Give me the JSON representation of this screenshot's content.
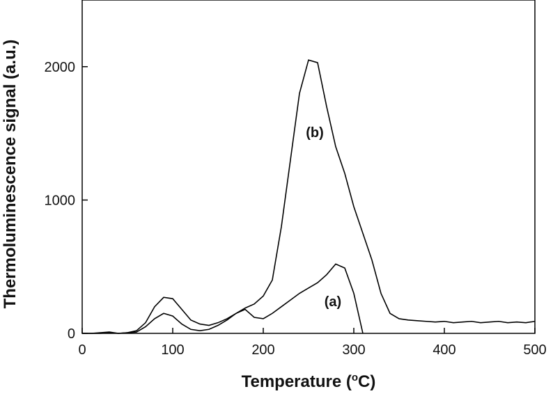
{
  "chart_data": {
    "type": "line",
    "xlabel": {
      "text": "Temperature (",
      "sup": "o",
      "after": "C)"
    },
    "ylabel": "Thermoluminescence signal (a.u.)",
    "annotations": [
      "(b)",
      "(a)"
    ],
    "x": [
      0,
      10,
      20,
      30,
      40,
      50,
      60,
      70,
      80,
      90,
      100,
      110,
      120,
      130,
      140,
      150,
      160,
      170,
      180,
      190,
      200,
      210,
      220,
      230,
      240,
      250,
      260,
      270,
      280,
      290,
      300,
      310,
      320,
      330,
      340,
      350,
      360,
      370,
      380,
      390,
      400,
      410,
      420,
      430,
      440,
      450,
      460,
      470,
      480,
      490,
      500
    ],
    "series": [
      {
        "name": "(b)",
        "color": "#000000",
        "values": [
          0,
          0,
          5,
          10,
          0,
          5,
          20,
          80,
          200,
          270,
          260,
          180,
          100,
          70,
          60,
          80,
          110,
          150,
          190,
          220,
          280,
          400,
          800,
          1300,
          1800,
          2050,
          2030,
          1700,
          1400,
          1200,
          950,
          750,
          550,
          300,
          150,
          110,
          100,
          95,
          90,
          85,
          90,
          80,
          85,
          90,
          80,
          85,
          90,
          80,
          85,
          80,
          90
        ]
      },
      {
        "name": "(a)",
        "color": "#000000",
        "values": [
          0,
          0,
          0,
          5,
          0,
          5,
          10,
          50,
          110,
          150,
          130,
          70,
          30,
          20,
          30,
          60,
          100,
          150,
          180,
          120,
          110,
          150,
          200,
          250,
          300,
          340,
          380,
          440,
          520,
          490,
          300,
          0,
          null,
          null,
          null,
          null,
          null,
          null,
          null,
          null,
          null,
          null,
          null,
          null,
          null,
          null,
          null,
          null,
          null,
          null,
          null
        ]
      }
    ],
    "xlim": [
      0,
      500
    ],
    "xticks": [
      0,
      100,
      200,
      300,
      400,
      500
    ],
    "ylim": [
      0,
      2500
    ],
    "yticks": [
      0,
      1000,
      2000
    ]
  }
}
